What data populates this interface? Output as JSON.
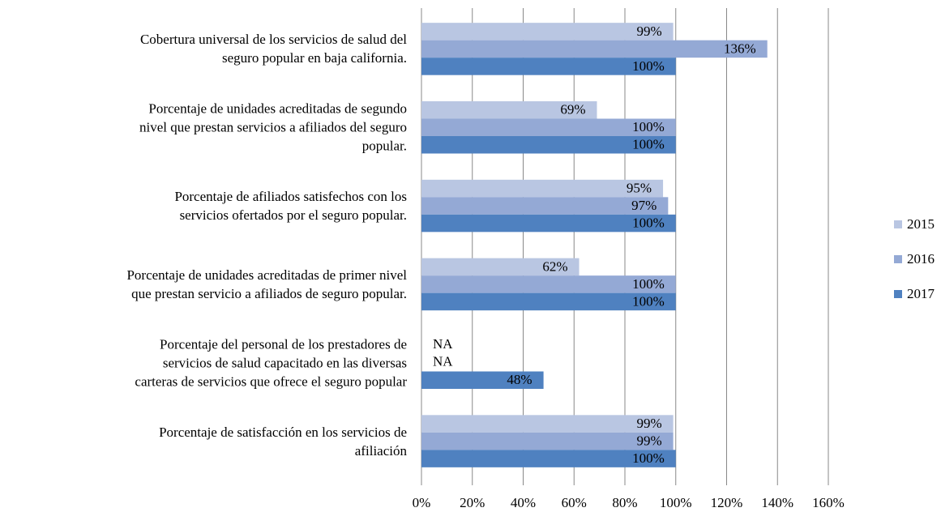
{
  "chart_data": {
    "type": "bar",
    "orientation": "horizontal",
    "categories": [
      "Cobertura universal de los servicios de salud del\nseguro popular en baja california.",
      "Porcentaje de unidades acreditadas de segundo\nnivel que prestan servicios a afiliados del seguro\npopular.",
      "Porcentaje de afiliados satisfechos con los\nservicios ofertados por el seguro popular.",
      "Porcentaje de unidades acreditadas de primer nivel\nque prestan servicio a afiliados de seguro popular.",
      "Porcentaje del personal de los prestadores de\nservicios de salud capacitado en las diversas\ncarteras de servicios que ofrece el seguro popular",
      "Porcentaje de satisfacción en los servicios de\nafiliación"
    ],
    "series": [
      {
        "name": "2015",
        "color": "#b9c6e2",
        "values": [
          99,
          69,
          95,
          62,
          null,
          99
        ],
        "value_labels": [
          "99%",
          "69%",
          "95%",
          "62%",
          "NA",
          "99%"
        ]
      },
      {
        "name": "2016",
        "color": "#94a9d5",
        "values": [
          136,
          100,
          97,
          100,
          null,
          99
        ],
        "value_labels": [
          "136%",
          "100%",
          "97%",
          "100%",
          "NA",
          "99%"
        ]
      },
      {
        "name": "2017",
        "color": "#4f81c0",
        "values": [
          100,
          100,
          100,
          100,
          48,
          100
        ],
        "value_labels": [
          "100%",
          "100%",
          "100%",
          "100%",
          "48%",
          "100%"
        ]
      }
    ],
    "xlim": [
      0,
      160
    ],
    "xticks": [
      {
        "value": 0,
        "label": "0%"
      },
      {
        "value": 20,
        "label": "20%"
      },
      {
        "value": 40,
        "label": "40%"
      },
      {
        "value": 60,
        "label": "60%"
      },
      {
        "value": 80,
        "label": "80%"
      },
      {
        "value": 100,
        "label": "100%"
      },
      {
        "value": 120,
        "label": "120%"
      },
      {
        "value": 140,
        "label": "140%"
      },
      {
        "value": 160,
        "label": "160%"
      }
    ],
    "grid": true,
    "legend": "right"
  }
}
